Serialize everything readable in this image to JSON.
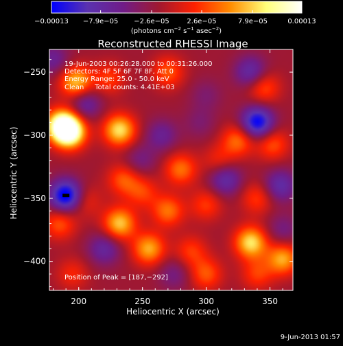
{
  "chart_data": {
    "type": "heatmap",
    "title": "Reconstructed RHESSI Image",
    "xlabel": "Heliocentric X (arcsec)",
    "ylabel": "Heliocentric Y (arcsec)",
    "xlim": [
      177,
      368
    ],
    "ylim": [
      -423,
      -232
    ],
    "x_ticks": [
      200,
      250,
      300,
      350
    ],
    "y_ticks": [
      -250,
      -300,
      -350,
      -400
    ],
    "x_tick_labels": [
      "200",
      "250",
      "300",
      "350"
    ],
    "y_tick_labels": [
      "−250",
      "−300",
      "−350",
      "−400"
    ],
    "colorbar": {
      "min": -0.00013,
      "max": 0.00013,
      "tick_values": [
        -0.00013,
        -7.9e-05,
        -2.6e-05,
        2.6e-05,
        7.9e-05,
        0.00013
      ],
      "tick_labels": [
        "−0.00013",
        "−7.9e−05",
        "−2.6e−05",
        "2.6e−05",
        "7.9e−05",
        "0.00013"
      ],
      "units_prefix": "(photons cm",
      "units_exp1": "−2",
      "units_mid": " s",
      "units_exp2": "−1",
      "units_mid2": " asec",
      "units_exp3": "−2",
      "units_suffix": ")",
      "colors": [
        "#0000ff",
        "#5a32b0",
        "#701c88",
        "#a01830",
        "#ff2000",
        "#ff8c00",
        "#ffff7a",
        "#ffffff"
      ]
    },
    "annotations": {
      "time_range": "19-Jun-2003 00:26:28.000 to 00:31:26.000",
      "detectors": "Detectors: 4F 5F 6F 7F 8F, Att 0",
      "energy": "Energy Range: 25.0 - 50.0 keV",
      "method": "Clean     Total counts: 4.41E+03",
      "peak": "Position of Peak = [187,−292]"
    },
    "features": [
      {
        "x": 187,
        "y": -292,
        "value": 0.00013
      },
      {
        "x": 193,
        "y": -298,
        "value": 0.00012
      },
      {
        "x": 198,
        "y": -258,
        "value": 9e-05
      },
      {
        "x": 232,
        "y": -296,
        "value": 0.0001
      },
      {
        "x": 224,
        "y": -255,
        "value": 4e-05
      },
      {
        "x": 270,
        "y": -250,
        "value": 5e-05
      },
      {
        "x": 345,
        "y": -262,
        "value": 5e-05
      },
      {
        "x": 325,
        "y": -304,
        "value": 6e-05
      },
      {
        "x": 352,
        "y": -307,
        "value": 5e-05
      },
      {
        "x": 310,
        "y": -320,
        "value": 3e-05
      },
      {
        "x": 280,
        "y": -327,
        "value": 6e-05
      },
      {
        "x": 235,
        "y": -335,
        "value": 5e-05
      },
      {
        "x": 250,
        "y": -345,
        "value": 4e-05
      },
      {
        "x": 270,
        "y": -360,
        "value": 6e-05
      },
      {
        "x": 300,
        "y": -355,
        "value": 4e-05
      },
      {
        "x": 340,
        "y": -350,
        "value": 4e-05
      },
      {
        "x": 232,
        "y": -370,
        "value": 9e-05
      },
      {
        "x": 255,
        "y": -390,
        "value": 8e-05
      },
      {
        "x": 335,
        "y": -385,
        "value": 0.0001
      },
      {
        "x": 360,
        "y": -398,
        "value": 8e-05
      },
      {
        "x": 300,
        "y": -410,
        "value": 5e-05
      },
      {
        "x": 195,
        "y": -410,
        "value": 3e-05
      },
      {
        "x": 185,
        "y": -370,
        "value": 5e-05
      },
      {
        "x": 205,
        "y": -352,
        "value": 3e-05
      },
      {
        "x": 288,
        "y": -392,
        "value": 4e-05
      },
      {
        "x": 340,
        "y": -410,
        "value": 4e-05
      },
      {
        "x": 190,
        "y": -348,
        "value": -0.00013
      },
      {
        "x": 205,
        "y": -275,
        "value": -6e-05
      },
      {
        "x": 340,
        "y": -290,
        "value": -0.00012
      },
      {
        "x": 335,
        "y": -250,
        "value": -7e-05
      },
      {
        "x": 315,
        "y": -335,
        "value": -7e-05
      },
      {
        "x": 265,
        "y": -300,
        "value": -5e-05
      },
      {
        "x": 295,
        "y": -290,
        "value": -3e-05
      },
      {
        "x": 358,
        "y": -340,
        "value": -7e-05
      },
      {
        "x": 220,
        "y": -390,
        "value": -6e-05
      },
      {
        "x": 300,
        "y": -268,
        "value": -3e-05
      },
      {
        "x": 248,
        "y": -320,
        "value": -4e-05
      },
      {
        "x": 275,
        "y": -410,
        "value": -4e-05
      },
      {
        "x": 360,
        "y": -375,
        "value": -4e-05
      },
      {
        "x": 180,
        "y": -240,
        "value": -5e-05
      }
    ]
  },
  "footer": {
    "timestamp": "9-Jun-2013 01:57"
  }
}
